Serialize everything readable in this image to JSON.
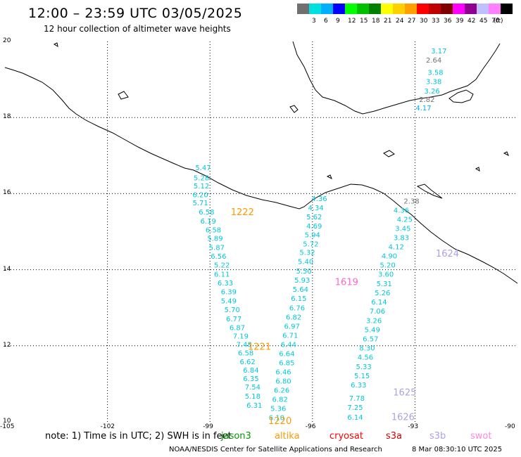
{
  "title": "12:00 – 23:59 UTC 03/05/2025",
  "subtitle": "12 hour collection of altimeter wave heights",
  "legend": {
    "unit": "(ft)",
    "bins": [
      {
        "label": "",
        "color": "#707070"
      },
      {
        "label": "3",
        "color": "#00e0e0"
      },
      {
        "label": "6",
        "color": "#00b0ff"
      },
      {
        "label": "9",
        "color": "#0000ff"
      },
      {
        "label": "12",
        "color": "#00ff00"
      },
      {
        "label": "15",
        "color": "#00c000"
      },
      {
        "label": "18",
        "color": "#008000"
      },
      {
        "label": "21",
        "color": "#ffff00"
      },
      {
        "label": "24",
        "color": "#ffd000"
      },
      {
        "label": "27",
        "color": "#ffa000"
      },
      {
        "label": "30",
        "color": "#ff0000"
      },
      {
        "label": "33",
        "color": "#c00000"
      },
      {
        "label": "36",
        "color": "#800000"
      },
      {
        "label": "39",
        "color": "#ff00ff"
      },
      {
        "label": "42",
        "color": "#900090"
      },
      {
        "label": "45",
        "color": "#c0c0ff"
      },
      {
        "label": "70",
        "color": "#ff80ff"
      },
      {
        "label": "",
        "color": "#000000"
      }
    ]
  },
  "map": {
    "lon_min": -105,
    "lon_max": -90,
    "lat_min": 10,
    "lat_max": 20,
    "lat_labels": [
      "20",
      "18",
      "16",
      "14",
      "12",
      "10"
    ],
    "lon_labels": [
      "-105",
      "-102",
      "-99",
      "-96",
      "-93",
      "-90"
    ]
  },
  "tracks": [
    {
      "color": "#00c8d8",
      "points": [
        {
          "lon": -99.2,
          "lat": 16.69,
          "v": "5.47"
        },
        {
          "lon": -99.25,
          "lat": 16.42,
          "v": "5.28"
        },
        {
          "lon": -99.25,
          "lat": 16.21,
          "v": "5.12"
        },
        {
          "lon": -99.28,
          "lat": 15.98,
          "v": "6.20"
        },
        {
          "lon": -99.28,
          "lat": 15.77,
          "v": "5.71"
        },
        {
          "lon": -99.1,
          "lat": 15.53,
          "v": "6.58"
        },
        {
          "lon": -99.05,
          "lat": 15.29,
          "v": "6.19"
        },
        {
          "lon": -98.9,
          "lat": 15.06,
          "v": "6.58"
        },
        {
          "lon": -98.85,
          "lat": 14.83,
          "v": "5.89"
        },
        {
          "lon": -98.8,
          "lat": 14.59,
          "v": "5.87"
        },
        {
          "lon": -98.75,
          "lat": 14.36,
          "v": "6.56"
        },
        {
          "lon": -98.65,
          "lat": 14.13,
          "v": "5.22"
        },
        {
          "lon": -98.65,
          "lat": 13.89,
          "v": "6.11"
        },
        {
          "lon": -98.55,
          "lat": 13.66,
          "v": "6.33"
        },
        {
          "lon": -98.45,
          "lat": 13.43,
          "v": "6.39"
        },
        {
          "lon": -98.45,
          "lat": 13.19,
          "v": "5.49"
        },
        {
          "lon": -98.35,
          "lat": 12.96,
          "v": "5.70"
        },
        {
          "lon": -98.3,
          "lat": 12.72,
          "v": "6.77"
        },
        {
          "lon": -98.2,
          "lat": 12.49,
          "v": "6.87"
        },
        {
          "lon": -98.1,
          "lat": 12.26,
          "v": "7.19"
        },
        {
          "lon": -98.0,
          "lat": 12.04,
          "v": "7.48"
        },
        {
          "lon": -97.95,
          "lat": 11.82,
          "v": "6.58"
        },
        {
          "lon": -97.9,
          "lat": 11.59,
          "v": "6.62"
        },
        {
          "lon": -97.8,
          "lat": 11.37,
          "v": "6.84"
        },
        {
          "lon": -97.8,
          "lat": 11.15,
          "v": "6.35"
        },
        {
          "lon": -97.75,
          "lat": 10.92,
          "v": "7.54"
        },
        {
          "lon": -97.75,
          "lat": 10.68,
          "v": "5.18"
        },
        {
          "lon": -97.7,
          "lat": 10.44,
          "v": "6.31"
        }
      ]
    },
    {
      "color": "#00c8d8",
      "points": [
        {
          "lon": -95.8,
          "lat": 15.88,
          "v": "4.36"
        },
        {
          "lon": -95.9,
          "lat": 15.64,
          "v": "4.34"
        },
        {
          "lon": -95.95,
          "lat": 15.4,
          "v": "5.62"
        },
        {
          "lon": -95.95,
          "lat": 15.16,
          "v": "4.69"
        },
        {
          "lon": -96.0,
          "lat": 14.93,
          "v": "5.94"
        },
        {
          "lon": -96.05,
          "lat": 14.69,
          "v": "5.72"
        },
        {
          "lon": -96.15,
          "lat": 14.46,
          "v": "5.32"
        },
        {
          "lon": -96.2,
          "lat": 14.22,
          "v": "5.40"
        },
        {
          "lon": -96.25,
          "lat": 13.97,
          "v": "5.50"
        },
        {
          "lon": -96.3,
          "lat": 13.73,
          "v": "5.93"
        },
        {
          "lon": -96.35,
          "lat": 13.49,
          "v": "5.64"
        },
        {
          "lon": -96.4,
          "lat": 13.25,
          "v": "6.15"
        },
        {
          "lon": -96.45,
          "lat": 13.0,
          "v": "6.76"
        },
        {
          "lon": -96.55,
          "lat": 12.76,
          "v": "6.82"
        },
        {
          "lon": -96.6,
          "lat": 12.52,
          "v": "6.97"
        },
        {
          "lon": -96.65,
          "lat": 12.28,
          "v": "6.71"
        },
        {
          "lon": -96.7,
          "lat": 12.04,
          "v": "6.44"
        },
        {
          "lon": -96.75,
          "lat": 11.8,
          "v": "6.64"
        },
        {
          "lon": -96.75,
          "lat": 11.56,
          "v": "6.85"
        },
        {
          "lon": -96.85,
          "lat": 11.32,
          "v": "6.46"
        },
        {
          "lon": -96.85,
          "lat": 11.08,
          "v": "6.80"
        },
        {
          "lon": -96.9,
          "lat": 10.84,
          "v": "6.26"
        },
        {
          "lon": -96.95,
          "lat": 10.6,
          "v": "6.82"
        },
        {
          "lon": -97.0,
          "lat": 10.36,
          "v": "5.36"
        },
        {
          "lon": -97.05,
          "lat": 10.12,
          "v": "6.10"
        }
      ]
    },
    {
      "color": "#00c8d8",
      "points": [
        {
          "lon": -93.4,
          "lat": 15.57,
          "v": "4.36"
        },
        {
          "lon": -93.3,
          "lat": 15.33,
          "v": "4.25"
        },
        {
          "lon": -93.35,
          "lat": 15.09,
          "v": "3.45"
        },
        {
          "lon": -93.4,
          "lat": 14.85,
          "v": "3.83"
        },
        {
          "lon": -93.55,
          "lat": 14.61,
          "v": "4.12"
        },
        {
          "lon": -93.75,
          "lat": 14.37,
          "v": "4.90"
        },
        {
          "lon": -93.8,
          "lat": 14.13,
          "v": "5.20"
        },
        {
          "lon": -93.85,
          "lat": 13.89,
          "v": "3.60"
        },
        {
          "lon": -93.9,
          "lat": 13.64,
          "v": "5.31"
        },
        {
          "lon": -93.95,
          "lat": 13.4,
          "v": "5.26"
        },
        {
          "lon": -94.05,
          "lat": 13.16,
          "v": "6.14"
        },
        {
          "lon": -94.1,
          "lat": 12.92,
          "v": "7.06"
        },
        {
          "lon": -94.2,
          "lat": 12.67,
          "v": "3.26"
        },
        {
          "lon": -94.25,
          "lat": 12.43,
          "v": "5.49"
        },
        {
          "lon": -94.3,
          "lat": 12.19,
          "v": "6.57"
        },
        {
          "lon": -94.4,
          "lat": 11.95,
          "v": "8.30"
        },
        {
          "lon": -94.45,
          "lat": 11.71,
          "v": "4.56"
        },
        {
          "lon": -94.5,
          "lat": 11.46,
          "v": "5.33"
        },
        {
          "lon": -94.55,
          "lat": 11.22,
          "v": "5.15"
        },
        {
          "lon": -94.65,
          "lat": 10.98,
          "v": "6.33"
        },
        {
          "lon": -94.7,
          "lat": 10.63,
          "v": "7.78"
        },
        {
          "lon": -94.75,
          "lat": 10.39,
          "v": "7.25"
        },
        {
          "lon": -94.75,
          "lat": 10.13,
          "v": "6.14"
        }
      ]
    },
    {
      "color": "#00c8d8",
      "points": [
        {
          "lon": -92.3,
          "lat": 19.76,
          "v": "3.17"
        },
        {
          "lon": -92.4,
          "lat": 19.2,
          "v": "3.58"
        },
        {
          "lon": -92.45,
          "lat": 18.96,
          "v": "3.38"
        },
        {
          "lon": -92.5,
          "lat": 18.71,
          "v": "3.26"
        }
      ]
    },
    {
      "color": "#707070",
      "points": [
        {
          "lon": -92.45,
          "lat": 19.52,
          "v": "2.64"
        },
        {
          "lon": -92.65,
          "lat": 18.48,
          "v": "2.82"
        },
        {
          "lon": -93.1,
          "lat": 15.81,
          "v": "2.38"
        }
      ]
    },
    {
      "color": "#00b0ff",
      "points": [
        {
          "lon": -92.75,
          "lat": 18.26,
          "v": "4.17"
        }
      ]
    }
  ],
  "passes": [
    {
      "lon": -98.05,
      "lat": 15.53,
      "label": "1222",
      "color": "#ff9900"
    },
    {
      "lon": -95.0,
      "lat": 13.69,
      "label": "1619",
      "color": "#ff66cc"
    },
    {
      "lon": -92.05,
      "lat": 14.44,
      "label": "1624",
      "color": "#b0a0e0"
    },
    {
      "lon": -97.55,
      "lat": 11.99,
      "label": "1221",
      "color": "#ff9900"
    },
    {
      "lon": -93.3,
      "lat": 10.79,
      "label": "1625",
      "color": "#b0a0e0"
    },
    {
      "lon": -93.35,
      "lat": 10.14,
      "label": "1626",
      "color": "#b0a0e0"
    },
    {
      "lon": -96.95,
      "lat": 10.04,
      "label": "1220",
      "color": "#ff9900"
    }
  ],
  "note": "note: 1) Time is in UTC; 2) SWH is in feet",
  "satellites": [
    {
      "name": "jason3",
      "color": "#009900"
    },
    {
      "name": "altika",
      "color": "#ff9900"
    },
    {
      "name": "cryosat",
      "color": "#ff0000"
    },
    {
      "name": "s3a",
      "color": "#cc0000"
    },
    {
      "name": "s3b",
      "color": "#b0a0e0"
    },
    {
      "name": "swot",
      "color": "#ff88dd"
    }
  ],
  "credit": "NOAA/NESDIS Center for Satellite Applications and Research",
  "generated": "8 Mar 08:30:10 UTC 2025"
}
